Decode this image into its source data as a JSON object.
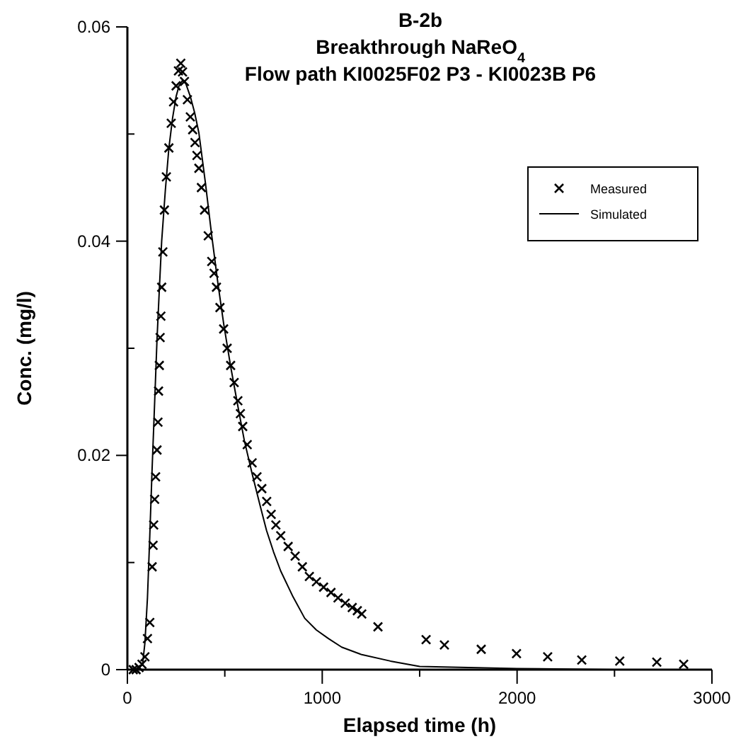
{
  "chart_data": {
    "type": "scatter",
    "title": "B-2b",
    "subtitle": "Breakthrough NaReO$_{4}$\nFlow path KI0025F02 P3 - KI0023B P6",
    "xlabel": "Elapsed time (h)",
    "ylabel": "Conc. (mg/l)",
    "xlim": [
      0,
      3000
    ],
    "ylim": [
      0,
      0.06
    ],
    "xticks": [
      0,
      {
        "value": 500,
        "label": null
      },
      1000,
      {
        "value": 1500,
        "label": null
      },
      2000,
      {
        "value": 2500,
        "label": null
      },
      3000
    ],
    "yticks": [
      0,
      {
        "value": 0.01,
        "label": null
      },
      0.02,
      {
        "value": 0.03,
        "label": null
      },
      0.04,
      {
        "value": 0.05,
        "label": null
      },
      0.06
    ],
    "grid": false,
    "legend": "top right",
    "series": [
      {
        "name": "Measured",
        "marker": "cross",
        "color": "#000000",
        "x": [
          30,
          45,
          60,
          75,
          90,
          103,
          115,
          127,
          132,
          135,
          140,
          145,
          152,
          157,
          160,
          164,
          168,
          172,
          176,
          182,
          190,
          200,
          213,
          225,
          237,
          250,
          262,
          274,
          283,
          293,
          308,
          323,
          335,
          347,
          357,
          367,
          380,
          396,
          415,
          433,
          445,
          457,
          475,
          494,
          512,
          530,
          548,
          567,
          580,
          592,
          615,
          640,
          665,
          690,
          715,
          738,
          762,
          787,
          825,
          861,
          898,
          934,
          970,
          1007,
          1045,
          1081,
          1118,
          1154,
          1180,
          1203,
          1286,
          1533,
          1627,
          1816,
          1997,
          2157,
          2332,
          2527,
          2717,
          2855
        ],
        "values": [
          0,
          0,
          0.0002,
          0.0005,
          0.0012,
          0.0029,
          0.0044,
          0.0096,
          0.0116,
          0.0135,
          0.0159,
          0.018,
          0.0205,
          0.0231,
          0.026,
          0.0284,
          0.031,
          0.033,
          0.0357,
          0.039,
          0.0429,
          0.046,
          0.0487,
          0.051,
          0.053,
          0.0545,
          0.0559,
          0.0566,
          0.0558,
          0.0549,
          0.0532,
          0.0516,
          0.0504,
          0.0492,
          0.048,
          0.0468,
          0.045,
          0.0429,
          0.0405,
          0.0381,
          0.037,
          0.0357,
          0.0338,
          0.0318,
          0.03,
          0.0284,
          0.0268,
          0.0251,
          0.0239,
          0.0227,
          0.021,
          0.0193,
          0.018,
          0.0169,
          0.0157,
          0.0145,
          0.0135,
          0.0125,
          0.0115,
          0.0106,
          0.0096,
          0.0087,
          0.0082,
          0.0077,
          0.0072,
          0.0067,
          0.0062,
          0.0058,
          0.0055,
          0.0052,
          0.004,
          0.0028,
          0.0023,
          0.0019,
          0.0015,
          0.0012,
          0.0009,
          0.0008,
          0.0007,
          0.0005
        ]
      },
      {
        "name": "Simulated",
        "type": "line",
        "marker": "none",
        "line_style": "solid",
        "color": "#000000",
        "x": [
          0,
          50,
          78,
          90,
          103,
          115,
          127,
          140,
          152,
          164,
          176,
          195,
          213,
          232,
          250,
          265,
          283,
          300,
          323,
          345,
          367,
          400,
          433,
          465,
          494,
          530,
          567,
          600,
          640,
          680,
          714,
          750,
          787,
          850,
          910,
          970,
          1032,
          1100,
          1203,
          1350,
          1500,
          1750,
          2000,
          2500,
          3000
        ],
        "values": [
          0,
          0,
          0.0005,
          0.0025,
          0.0067,
          0.0125,
          0.0188,
          0.025,
          0.0308,
          0.0355,
          0.04,
          0.0448,
          0.0487,
          0.0515,
          0.0535,
          0.0545,
          0.055,
          0.0547,
          0.0535,
          0.052,
          0.0501,
          0.0455,
          0.0405,
          0.036,
          0.0323,
          0.0283,
          0.0246,
          0.0214,
          0.0183,
          0.0154,
          0.013,
          0.011,
          0.0092,
          0.0068,
          0.0048,
          0.0037,
          0.0029,
          0.0021,
          0.0014,
          0.0008,
          0.0003,
          0.0002,
          0.0001,
          0,
          0
        ]
      }
    ]
  }
}
